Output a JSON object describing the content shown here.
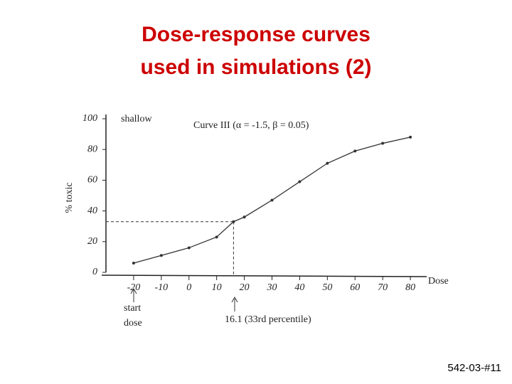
{
  "chart_data": {
    "type": "line",
    "title": [
      "Dose-response curves",
      "used in simulations (2)"
    ],
    "x_label": "Dose",
    "y_label": "% toxic",
    "annotations": [
      "shallow",
      "Curve III (α = -1.5, β = 0.05)",
      "start",
      "dose",
      "16.1 (33rd percentile)"
    ],
    "footer": "542-03-#11",
    "x": [
      -20,
      -10,
      0,
      10,
      16.1,
      20,
      30,
      40,
      50,
      60,
      70,
      80
    ],
    "series": [
      {
        "name": "Curve III",
        "color": "#333333",
        "values": [
          6,
          11,
          16,
          23,
          33,
          36,
          47,
          59,
          71,
          79,
          84,
          88
        ]
      }
    ],
    "xlim": [
      -30,
      90
    ],
    "ylim": [
      0,
      100
    ],
    "xticks": [
      -20,
      -10,
      0,
      10,
      20,
      30,
      40,
      50,
      60,
      70,
      80
    ],
    "yticks": [
      0,
      20,
      40,
      60,
      80,
      100
    ],
    "grid": false
  }
}
